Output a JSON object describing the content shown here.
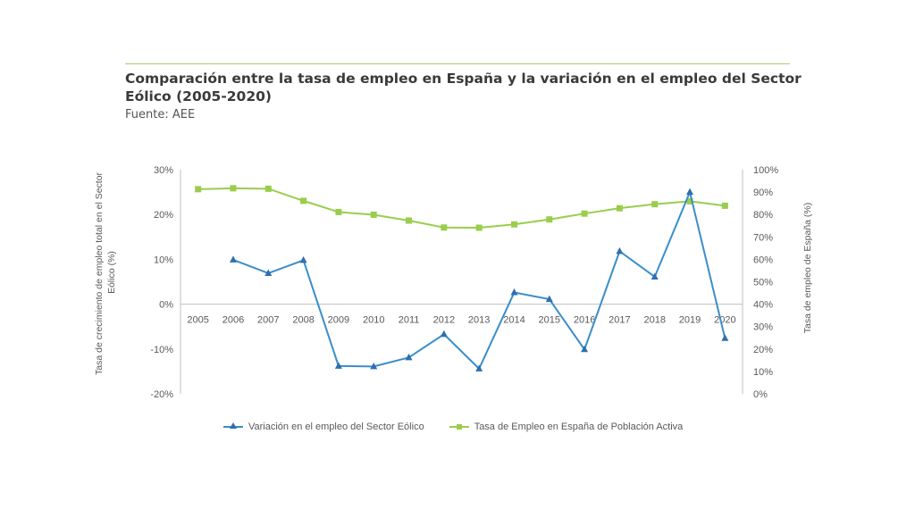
{
  "header": {
    "title": "Comparación entre la tasa de empleo en España y la variación en el empleo del Sector Eólico (2005-2020)",
    "source": "Fuente: AEE"
  },
  "colors": {
    "wind": "#3a8ec9",
    "wind_marker": "#2f6fb0",
    "employment": "#9acd4c",
    "accent_rule": "#a9c96b",
    "axis": "#bfbfbf"
  },
  "chart_data": {
    "type": "line",
    "title": "Comparación entre la tasa de empleo en España y la variación en el empleo del Sector Eólico (2005-2020)",
    "categories": [
      "2005",
      "2006",
      "2007",
      "2008",
      "2009",
      "2010",
      "2011",
      "2012",
      "2013",
      "2014",
      "2015",
      "2016",
      "2017",
      "2018",
      "2019",
      "2020"
    ],
    "ylabel": "Tasa de crecimiento de empleo total en el Sector Eólico (%)",
    "y2label": "Tasa de empleo de España (%)",
    "ylim": [
      -20,
      30
    ],
    "y2lim": [
      0,
      100
    ],
    "y_ticks": [
      "30%",
      "20%",
      "10%",
      "0%",
      "-10%",
      "-20%"
    ],
    "y2_ticks": [
      "100%",
      "90%",
      "80%",
      "70%",
      "60%",
      "50%",
      "40%",
      "30%",
      "20%",
      "10%",
      "0%"
    ],
    "grid": false,
    "legend_position": "bottom",
    "series": [
      {
        "name": "Variación en el empleo del Sector Eólico",
        "axis": "left",
        "marker": "triangle",
        "values": [
          null,
          9.9,
          6.9,
          9.8,
          -13.8,
          -13.9,
          -11.9,
          -6.7,
          -14.4,
          2.6,
          1.1,
          -10.1,
          11.8,
          6.1,
          25.0,
          -7.6
        ]
      },
      {
        "name": "Tasa de Empleo en España de Población Activa",
        "axis": "right",
        "marker": "square",
        "values": [
          91.3,
          91.7,
          91.5,
          86.1,
          81.1,
          79.9,
          77.3,
          74.2,
          74.1,
          75.6,
          77.8,
          80.4,
          82.8,
          84.6,
          85.9,
          83.9
        ]
      }
    ]
  }
}
